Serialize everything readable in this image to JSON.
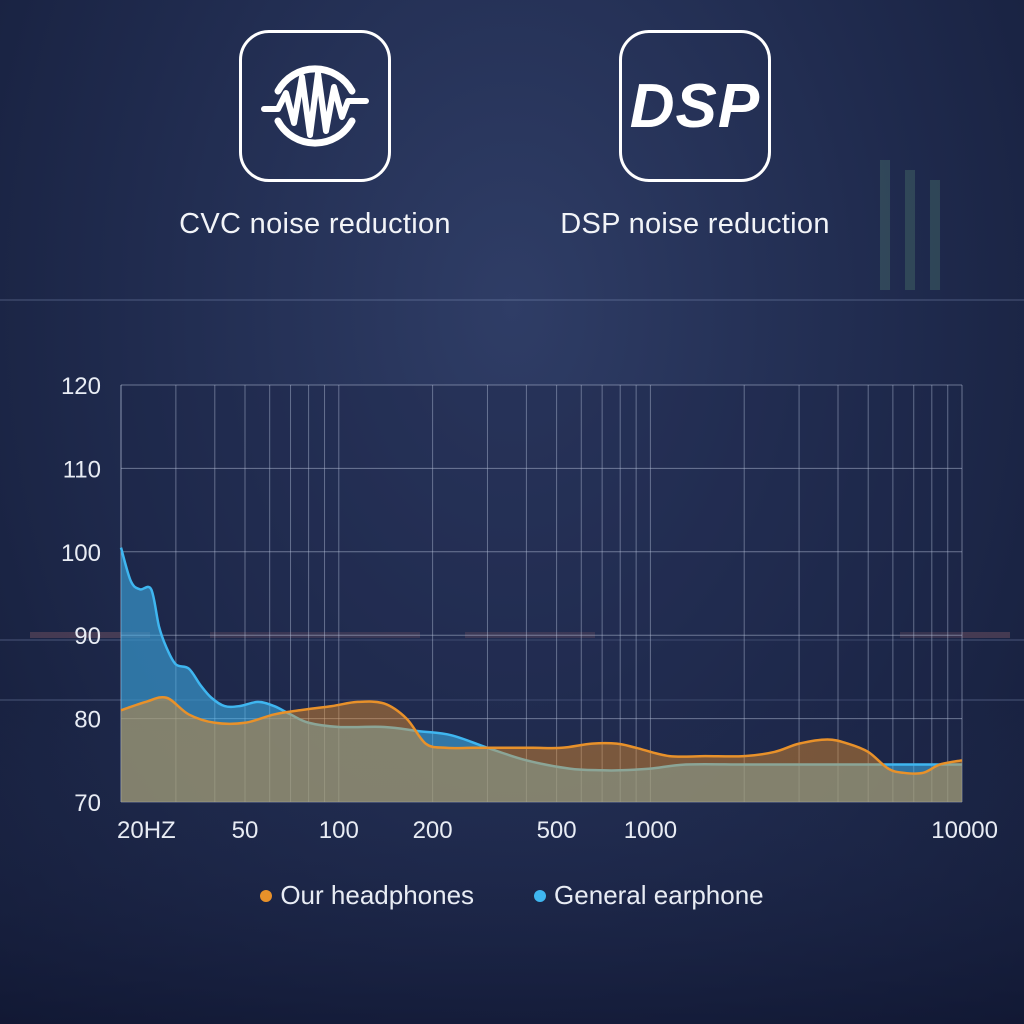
{
  "features": [
    {
      "icon": "sound-wave-circle-icon",
      "label": "CVC noise reduction"
    },
    {
      "icon": "dsp-icon",
      "badge_text": "DSP",
      "label": "DSP noise reduction"
    }
  ],
  "colors": {
    "ours": "#e8912a",
    "general": "#3fb6f0",
    "grid": "#b9c3dc"
  },
  "chart_data": {
    "type": "area",
    "x_scale": "log",
    "xlim": [
      20,
      10000
    ],
    "ylim": [
      70,
      120
    ],
    "yticks": [
      70,
      80,
      90,
      100,
      110,
      120
    ],
    "xtick_labels": [
      {
        "value": 20,
        "label": "20HZ"
      },
      {
        "value": 50,
        "label": "50"
      },
      {
        "value": 100,
        "label": "100"
      },
      {
        "value": 200,
        "label": "200"
      },
      {
        "value": 500,
        "label": "500"
      },
      {
        "value": 1000,
        "label": "1000"
      },
      {
        "value": 10000,
        "label": "10000"
      }
    ],
    "grid": true,
    "legend_position": "bottom",
    "series": [
      {
        "name": "Our headphones",
        "x": [
          20,
          24,
          28,
          33,
          40,
          50,
          62,
          75,
          95,
          115,
          140,
          165,
          190,
          220,
          270,
          330,
          420,
          520,
          650,
          780,
          900,
          1150,
          1500,
          2000,
          2500,
          3000,
          3700,
          4300,
          5000,
          5800,
          6500,
          7500,
          8500,
          10000
        ],
        "y": [
          81,
          82,
          82.5,
          80.5,
          79.5,
          79.5,
          80.5,
          81,
          81.5,
          82,
          81.8,
          80,
          77,
          76.5,
          76.5,
          76.5,
          76.5,
          76.5,
          77,
          77,
          76.5,
          75.5,
          75.5,
          75.5,
          76,
          77,
          77.5,
          77,
          76,
          74,
          73.5,
          73.5,
          74.5,
          75
        ]
      },
      {
        "name": "General earphone",
        "x": [
          20,
          21.5,
          23,
          25,
          26.5,
          28,
          30,
          33,
          36,
          39,
          43,
          48,
          55,
          62,
          70,
          80,
          100,
          140,
          180,
          230,
          300,
          400,
          550,
          700,
          800,
          1000,
          1300,
          2000,
          3000,
          4000,
          5500,
          7000,
          10000
        ],
        "y": [
          100.5,
          96.5,
          95.5,
          95.5,
          91,
          88.5,
          86.5,
          86,
          84,
          82.5,
          81.5,
          81.5,
          82,
          81.5,
          80.5,
          79.5,
          79,
          79,
          78.5,
          78,
          76.5,
          75,
          74,
          73.8,
          73.8,
          74,
          74.5,
          74.5,
          74.5,
          74.5,
          74.5,
          74.5,
          74.5
        ]
      }
    ]
  }
}
